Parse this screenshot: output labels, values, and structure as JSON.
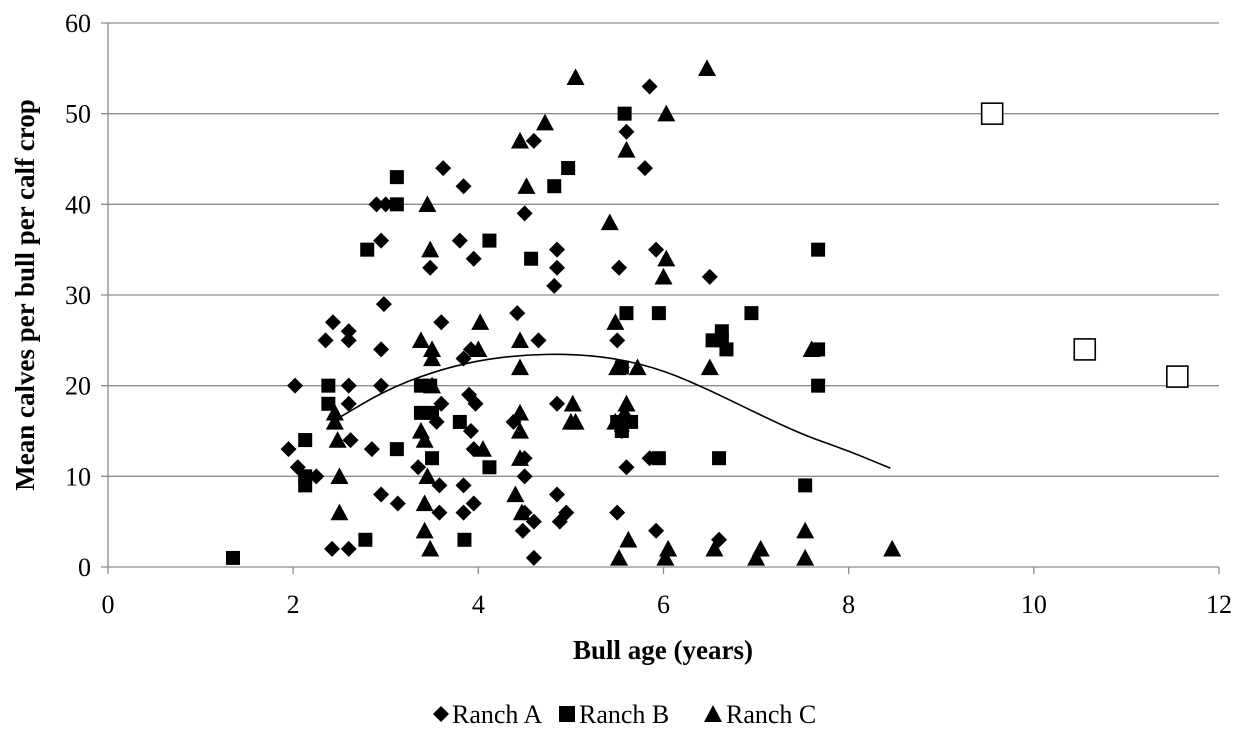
{
  "chart_data": {
    "type": "scatter",
    "title": "",
    "xlabel": "Bull age (years)",
    "ylabel": "Mean calves per bull per calf crop",
    "xlim": [
      0,
      12
    ],
    "ylim": [
      0,
      60
    ],
    "x_ticks": [
      "0",
      "2",
      "4",
      "6",
      "8",
      "10",
      "12"
    ],
    "y_ticks": [
      "0",
      "10",
      "20",
      "30",
      "40",
      "50",
      "60"
    ],
    "grid": "horizontal",
    "legend_position": "bottom",
    "series": [
      {
        "name": "Ranch A",
        "marker": "diamond",
        "points": [
          [
            1.95,
            13
          ],
          [
            2.02,
            20
          ],
          [
            2.05,
            11
          ],
          [
            2.25,
            10
          ],
          [
            2.35,
            25
          ],
          [
            2.43,
            27
          ],
          [
            2.42,
            2
          ],
          [
            2.6,
            18
          ],
          [
            2.6,
            26
          ],
          [
            2.6,
            25
          ],
          [
            2.6,
            20
          ],
          [
            2.62,
            14
          ],
          [
            2.6,
            2
          ],
          [
            2.85,
            13
          ],
          [
            2.9,
            40
          ],
          [
            2.95,
            24
          ],
          [
            2.95,
            20
          ],
          [
            2.95,
            36
          ],
          [
            2.98,
            29
          ],
          [
            2.95,
            8
          ],
          [
            3.0,
            40
          ],
          [
            3.13,
            7
          ],
          [
            3.35,
            11
          ],
          [
            3.48,
            33
          ],
          [
            3.62,
            44
          ],
          [
            3.6,
            18
          ],
          [
            3.6,
            27
          ],
          [
            3.55,
            16
          ],
          [
            3.58,
            9
          ],
          [
            3.58,
            6
          ],
          [
            3.8,
            36
          ],
          [
            3.84,
            42
          ],
          [
            3.84,
            23
          ],
          [
            3.84,
            9
          ],
          [
            3.84,
            6
          ],
          [
            3.9,
            19
          ],
          [
            3.92,
            15
          ],
          [
            3.95,
            34
          ],
          [
            3.92,
            24
          ],
          [
            3.95,
            13
          ],
          [
            3.95,
            7
          ],
          [
            3.97,
            18
          ],
          [
            4.42,
            28
          ],
          [
            4.38,
            16
          ],
          [
            4.5,
            39
          ],
          [
            4.5,
            12
          ],
          [
            4.5,
            10
          ],
          [
            4.5,
            6
          ],
          [
            4.48,
            4
          ],
          [
            4.6,
            47
          ],
          [
            4.65,
            25
          ],
          [
            4.6,
            5
          ],
          [
            4.6,
            1
          ],
          [
            4.82,
            31
          ],
          [
            4.85,
            35
          ],
          [
            4.85,
            33
          ],
          [
            4.85,
            18
          ],
          [
            4.85,
            8
          ],
          [
            4.88,
            5
          ],
          [
            4.95,
            6
          ],
          [
            5.52,
            33
          ],
          [
            5.5,
            25
          ],
          [
            5.55,
            22
          ],
          [
            5.55,
            15
          ],
          [
            5.5,
            6
          ],
          [
            5.6,
            48
          ],
          [
            5.6,
            11
          ],
          [
            5.8,
            44
          ],
          [
            5.85,
            53
          ],
          [
            5.92,
            35
          ],
          [
            5.92,
            4
          ],
          [
            5.85,
            12
          ],
          [
            6.5,
            32
          ],
          [
            6.6,
            3
          ]
        ]
      },
      {
        "name": "Ranch B",
        "marker": "square",
        "points": [
          [
            1.35,
            1
          ],
          [
            2.13,
            14
          ],
          [
            2.13,
            10
          ],
          [
            2.13,
            9
          ],
          [
            2.38,
            20
          ],
          [
            2.38,
            18
          ],
          [
            2.8,
            35
          ],
          [
            2.78,
            3
          ],
          [
            3.12,
            43
          ],
          [
            3.12,
            40
          ],
          [
            3.12,
            13
          ],
          [
            3.38,
            20
          ],
          [
            3.38,
            17
          ],
          [
            3.48,
            20
          ],
          [
            3.5,
            12
          ],
          [
            3.5,
            17
          ],
          [
            3.8,
            16
          ],
          [
            3.85,
            3
          ],
          [
            4.12,
            36
          ],
          [
            4.12,
            11
          ],
          [
            4.57,
            34
          ],
          [
            4.82,
            42
          ],
          [
            4.97,
            44
          ],
          [
            5.58,
            50
          ],
          [
            5.6,
            28
          ],
          [
            5.55,
            22
          ],
          [
            5.5,
            16
          ],
          [
            5.55,
            15
          ],
          [
            5.65,
            16
          ],
          [
            5.95,
            28
          ],
          [
            5.95,
            12
          ],
          [
            6.53,
            25
          ],
          [
            6.63,
            26
          ],
          [
            6.63,
            25
          ],
          [
            6.68,
            24
          ],
          [
            6.95,
            28
          ],
          [
            6.6,
            12
          ],
          [
            7.53,
            9
          ],
          [
            7.67,
            35
          ],
          [
            7.67,
            24
          ],
          [
            7.67,
            20
          ]
        ]
      },
      {
        "name": "Ranch C",
        "marker": "triangle",
        "points": [
          [
            2.45,
            16
          ],
          [
            2.45,
            17
          ],
          [
            2.48,
            14
          ],
          [
            2.5,
            10
          ],
          [
            2.5,
            6
          ],
          [
            3.38,
            25
          ],
          [
            3.38,
            15
          ],
          [
            3.45,
            40
          ],
          [
            3.48,
            35
          ],
          [
            3.5,
            20
          ],
          [
            3.5,
            24
          ],
          [
            3.5,
            23
          ],
          [
            3.42,
            14
          ],
          [
            3.45,
            10
          ],
          [
            3.42,
            7
          ],
          [
            3.42,
            4
          ],
          [
            3.48,
            2
          ],
          [
            4.02,
            27
          ],
          [
            4.0,
            24
          ],
          [
            4.05,
            13
          ],
          [
            4.45,
            47
          ],
          [
            4.52,
            42
          ],
          [
            4.72,
            49
          ],
          [
            4.45,
            25
          ],
          [
            4.45,
            22
          ],
          [
            4.45,
            17
          ],
          [
            4.45,
            15
          ],
          [
            4.45,
            12
          ],
          [
            4.4,
            8
          ],
          [
            4.47,
            6
          ],
          [
            5.05,
            54
          ],
          [
            5.02,
            18
          ],
          [
            5.05,
            16
          ],
          [
            5.0,
            16
          ],
          [
            5.42,
            38
          ],
          [
            5.48,
            27
          ],
          [
            5.5,
            22
          ],
          [
            5.48,
            16
          ],
          [
            5.52,
            1
          ],
          [
            5.6,
            46
          ],
          [
            5.6,
            18
          ],
          [
            5.58,
            17
          ],
          [
            5.62,
            3
          ],
          [
            5.72,
            22
          ],
          [
            6.03,
            50
          ],
          [
            6.03,
            34
          ],
          [
            6.0,
            32
          ],
          [
            6.05,
            2
          ],
          [
            6.02,
            1
          ],
          [
            6.47,
            55
          ],
          [
            6.5,
            22
          ],
          [
            6.55,
            2
          ],
          [
            7.0,
            1
          ],
          [
            7.05,
            2
          ],
          [
            7.53,
            4
          ],
          [
            7.53,
            1
          ],
          [
            7.6,
            24
          ],
          [
            8.47,
            2
          ]
        ]
      },
      {
        "name": "",
        "marker": "open-square",
        "points": [
          [
            9.55,
            50
          ],
          [
            10.55,
            24
          ],
          [
            11.55,
            21
          ]
        ]
      }
    ],
    "trendline": {
      "type": "polynomial",
      "points": [
        [
          2.5,
          16.5
        ],
        [
          3.0,
          19.5
        ],
        [
          3.5,
          21.5
        ],
        [
          4.0,
          22.8
        ],
        [
          4.5,
          23.4
        ],
        [
          5.0,
          23.5
        ],
        [
          5.5,
          23.0
        ],
        [
          6.0,
          21.7
        ],
        [
          6.5,
          19.5
        ],
        [
          7.0,
          17.0
        ],
        [
          7.5,
          14.6
        ],
        [
          8.0,
          12.8
        ],
        [
          8.45,
          10.9
        ]
      ]
    },
    "colors": {
      "markers": "#000000",
      "grid": "#8c8c8c",
      "trendline": "#000000"
    }
  },
  "legend": {
    "items": [
      {
        "label": "Ranch A",
        "marker": "diamond"
      },
      {
        "label": "Ranch B",
        "marker": "square"
      },
      {
        "label": "Ranch C",
        "marker": "triangle"
      }
    ]
  }
}
